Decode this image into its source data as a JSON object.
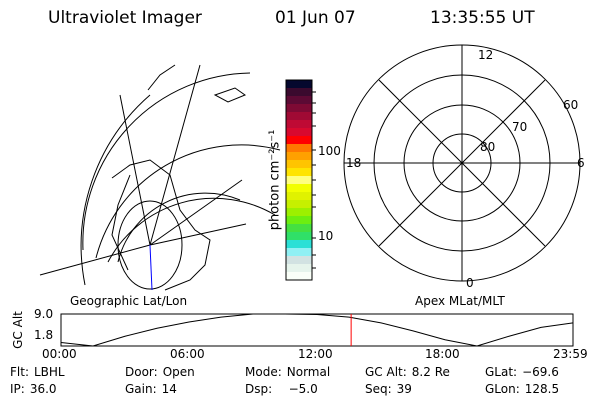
{
  "header": {
    "instrument": "Ultraviolet Imager",
    "date": "01 Jun 07",
    "time": "13:35:55 UT"
  },
  "colorbar": {
    "label": "photon cm⁻²s⁻¹",
    "ticks": [
      "100",
      "10"
    ],
    "colors": [
      "#05082e",
      "#3a0a2e",
      "#5c0a34",
      "#7e0a34",
      "#a00a34",
      "#bf0a34",
      "#d8092e",
      "#ff0000",
      "#ff7800",
      "#ffa000",
      "#ffc400",
      "#ffe400",
      "#ffff80",
      "#f2ff00",
      "#e0f200",
      "#c6f000",
      "#9cf000",
      "#6cee10",
      "#44e040",
      "#30e068",
      "#2ae0d6",
      "#90f0f4",
      "#d2e2e2",
      "#e6f4ec",
      "#fafff8"
    ]
  },
  "polar": {
    "lat_labels": [
      "80",
      "70",
      "60"
    ],
    "mlt_labels": {
      "top": "12",
      "right": "6",
      "bottom": "0",
      "left": "18"
    }
  },
  "panel_labels": {
    "left": "Geographic Lat/Lon",
    "right": "Apex MLat/MLT"
  },
  "chart_data": {
    "type": "line",
    "ylabel": "GC Alt",
    "yticks": [
      "9.0",
      "1.8"
    ],
    "xticks": [
      "00:00",
      "06:00",
      "12:00",
      "18:00",
      "23:59"
    ],
    "x_hours": [
      0,
      1.5,
      3,
      4.5,
      6,
      7.5,
      9,
      10.5,
      12,
      13.5,
      15,
      16.5,
      18,
      19.5,
      21,
      22.5,
      24
    ],
    "y": [
      2.6,
      1.8,
      4.0,
      5.8,
      7.2,
      8.3,
      9.0,
      9.0,
      8.9,
      8.3,
      7.0,
      5.2,
      3.2,
      1.8,
      4.0,
      6.0,
      7.0
    ],
    "ylim": [
      1.8,
      9.0
    ],
    "current_time_hours": 13.6,
    "marker_color": "#ff0000"
  },
  "status": [
    [
      {
        "label": "Flt:",
        "value": "LBHL"
      },
      {
        "label": "Door:",
        "value": "Open"
      },
      {
        "label": "Mode:",
        "value": "Normal"
      },
      {
        "label": "GC Alt:",
        "value": "8.2 Re"
      },
      {
        "label": "GLat:",
        "value": "−69.6"
      }
    ],
    [
      {
        "label": "IP:",
        "value": "36.0"
      },
      {
        "label": "Gain:",
        "value": "14"
      },
      {
        "label": "Dsp:",
        "value": "   −5.0"
      },
      {
        "label": "Seq:",
        "value": "39"
      },
      {
        "label": "GLon:",
        "value": "128.5"
      }
    ]
  ]
}
